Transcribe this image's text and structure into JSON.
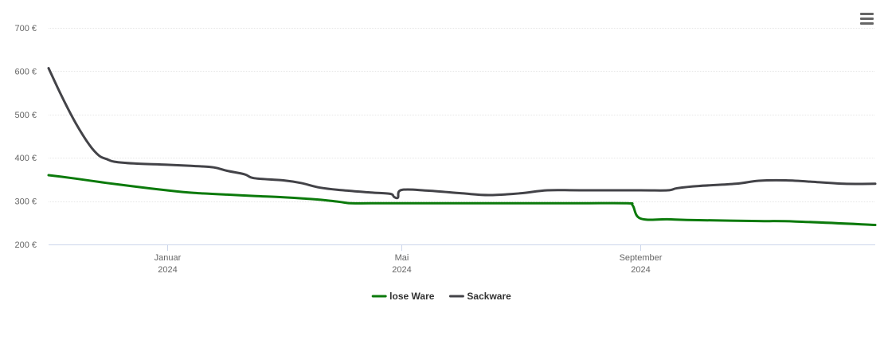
{
  "chart_data": {
    "type": "line",
    "title": "",
    "xlabel": "",
    "ylabel": "",
    "x_range": [
      "2023-11-01",
      "2024-12-31"
    ],
    "ylim": [
      200,
      700
    ],
    "y_ticks": [
      200,
      300,
      400,
      500,
      600,
      700
    ],
    "y_tick_labels": [
      "200 €",
      "300 €",
      "400 €",
      "500 €",
      "600 €",
      "700 €"
    ],
    "x_ticks": [
      {
        "date": "2024-01-01",
        "month": "Januar",
        "year": "2024"
      },
      {
        "date": "2024-05-01",
        "month": "Mai",
        "year": "2024"
      },
      {
        "date": "2024-09-01",
        "month": "September",
        "year": "2024"
      }
    ],
    "grid": true,
    "legend_position": "bottom-center",
    "series": [
      {
        "name": "lose Ware",
        "color": "#0b7a0b",
        "points": [
          [
            "2023-11-01",
            360
          ],
          [
            "2023-11-15",
            352
          ],
          [
            "2023-12-01",
            342
          ],
          [
            "2023-12-15",
            334
          ],
          [
            "2024-01-01",
            325
          ],
          [
            "2024-01-15",
            319
          ],
          [
            "2024-02-01",
            315
          ],
          [
            "2024-02-15",
            312
          ],
          [
            "2024-03-01",
            309
          ],
          [
            "2024-03-15",
            305
          ],
          [
            "2024-03-25",
            301
          ],
          [
            "2024-04-01",
            297
          ],
          [
            "2024-04-05",
            295
          ],
          [
            "2024-04-15",
            295
          ],
          [
            "2024-05-01",
            295
          ],
          [
            "2024-06-01",
            295
          ],
          [
            "2024-07-01",
            295
          ],
          [
            "2024-08-01",
            295
          ],
          [
            "2024-08-25",
            295
          ],
          [
            "2024-08-28",
            290
          ],
          [
            "2024-09-01",
            260
          ],
          [
            "2024-09-15",
            258
          ],
          [
            "2024-10-01",
            256
          ],
          [
            "2024-11-01",
            254
          ],
          [
            "2024-11-20",
            253
          ],
          [
            "2024-12-31",
            245
          ]
        ]
      },
      {
        "name": "Sackware",
        "color": "#434348",
        "points": [
          [
            "2023-11-01",
            607
          ],
          [
            "2023-11-08",
            540
          ],
          [
            "2023-11-15",
            480
          ],
          [
            "2023-11-22",
            430
          ],
          [
            "2023-11-27",
            405
          ],
          [
            "2023-12-01",
            397
          ],
          [
            "2023-12-05",
            391
          ],
          [
            "2023-12-15",
            387
          ],
          [
            "2024-01-01",
            384
          ],
          [
            "2024-01-15",
            381
          ],
          [
            "2024-01-25",
            378
          ],
          [
            "2024-02-01",
            370
          ],
          [
            "2024-02-10",
            362
          ],
          [
            "2024-02-15",
            353
          ],
          [
            "2024-03-01",
            348
          ],
          [
            "2024-03-10",
            342
          ],
          [
            "2024-03-20",
            331
          ],
          [
            "2024-04-01",
            325
          ],
          [
            "2024-04-15",
            320
          ],
          [
            "2024-04-25",
            317
          ],
          [
            "2024-04-27",
            310
          ],
          [
            "2024-04-29",
            308
          ],
          [
            "2024-05-01",
            326
          ],
          [
            "2024-05-15",
            324
          ],
          [
            "2024-06-01",
            318
          ],
          [
            "2024-06-15",
            314
          ],
          [
            "2024-07-01",
            318
          ],
          [
            "2024-07-15",
            325
          ],
          [
            "2024-08-01",
            325
          ],
          [
            "2024-09-01",
            325
          ],
          [
            "2024-09-15",
            325
          ],
          [
            "2024-09-20",
            330
          ],
          [
            "2024-10-01",
            335
          ],
          [
            "2024-10-20",
            340
          ],
          [
            "2024-11-01",
            347
          ],
          [
            "2024-11-15",
            348
          ],
          [
            "2024-12-01",
            344
          ],
          [
            "2024-12-15",
            340
          ],
          [
            "2024-12-31",
            340
          ]
        ]
      }
    ]
  },
  "menu": {
    "icon": "hamburger-menu-icon"
  }
}
